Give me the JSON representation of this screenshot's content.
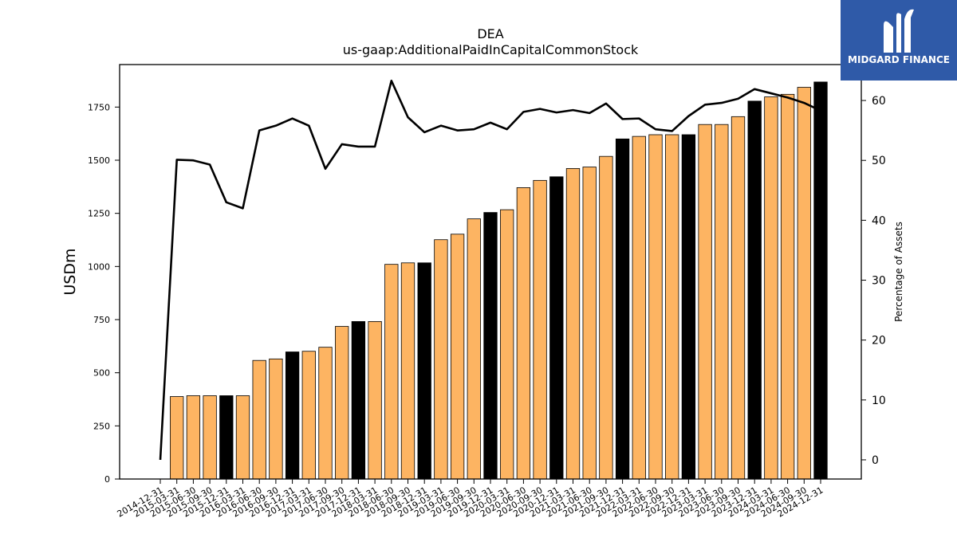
{
  "chart_data": {
    "type": "bar",
    "title": "DEA",
    "subtitle": "us-gaap:AdditionalPaidInCapitalCommonStock",
    "ylabel": "USDm",
    "y2label": "Percentage of Assets",
    "ylim": [
      0,
      1950
    ],
    "y2lim": [
      -3.2,
      66
    ],
    "yticks": [
      0,
      250,
      500,
      750,
      1000,
      1250,
      1500,
      1750
    ],
    "y2ticks": [
      0,
      10,
      20,
      30,
      40,
      50,
      60
    ],
    "grid": false,
    "legend": "none",
    "colors": {
      "quarterly": "#fdb462",
      "annual": "#000000",
      "line": "#000000"
    },
    "categories": [
      "2014-12-31",
      "2015-03-31",
      "2015-06-30",
      "2015-09-30",
      "2015-12-31",
      "2016-03-31",
      "2016-06-30",
      "2016-09-30",
      "2016-12-31",
      "2017-03-31",
      "2017-06-30",
      "2017-09-30",
      "2017-12-31",
      "2018-03-31",
      "2018-06-30",
      "2018-09-30",
      "2018-12-31",
      "2019-03-31",
      "2019-06-30",
      "2019-09-30",
      "2019-12-31",
      "2020-03-31",
      "2020-06-30",
      "2020-09-30",
      "2020-12-31",
      "2021-03-31",
      "2021-06-30",
      "2021-09-30",
      "2021-12-31",
      "2022-03-31",
      "2022-06-30",
      "2022-09-30",
      "2022-12-31",
      "2023-03-31",
      "2023-06-30",
      "2023-09-30",
      "2023-12-31",
      "2024-03-31",
      "2024-06-30",
      "2024-09-30",
      "2024-12-31"
    ],
    "values": [
      0,
      388,
      392,
      392,
      392,
      392,
      558,
      565,
      598,
      601,
      620,
      718,
      741,
      741,
      1010,
      1017,
      1017,
      1126,
      1152,
      1224,
      1254,
      1267,
      1371,
      1405,
      1422,
      1461,
      1468,
      1518,
      1600,
      1612,
      1620,
      1620,
      1620,
      1668,
      1668,
      1705,
      1778,
      1798,
      1810,
      1843,
      1868
    ],
    "annual": [
      false,
      false,
      false,
      false,
      true,
      false,
      false,
      false,
      true,
      false,
      false,
      false,
      true,
      false,
      false,
      false,
      true,
      false,
      false,
      false,
      true,
      false,
      false,
      false,
      true,
      false,
      false,
      false,
      true,
      false,
      false,
      false,
      true,
      false,
      false,
      false,
      true,
      false,
      false,
      false,
      true
    ],
    "pct_of_assets": [
      0,
      50.1,
      50.0,
      49.3,
      43.0,
      42.0,
      55.0,
      55.8,
      57.0,
      55.8,
      48.6,
      52.7,
      52.3,
      52.3,
      63.3,
      57.2,
      54.7,
      55.8,
      55.0,
      55.2,
      56.3,
      55.2,
      58.1,
      58.6,
      58.0,
      58.4,
      57.9,
      59.5,
      56.9,
      57.0,
      55.2,
      54.9,
      57.4,
      59.3,
      59.6,
      60.3,
      61.9,
      61.2,
      60.5,
      59.6,
      58.3
    ]
  },
  "brand": {
    "name": "MIDGARD FINANCE",
    "color": "#2f5aa8"
  }
}
